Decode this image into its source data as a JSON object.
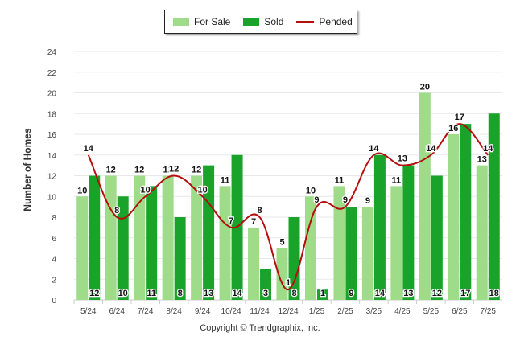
{
  "copyright": "Copyright © Trendgraphix, Inc.",
  "chart_data": {
    "type": "bar",
    "categories": [
      "5/24",
      "6/24",
      "7/24",
      "8/24",
      "9/24",
      "10/24",
      "11/24",
      "12/24",
      "1/25",
      "2/25",
      "3/25",
      "4/25",
      "5/25",
      "6/25",
      "7/25"
    ],
    "series": [
      {
        "name": "For Sale",
        "kind": "bar",
        "color": "#9fdc8a",
        "values": [
          10,
          12,
          12,
          12,
          12,
          11,
          7,
          5,
          10,
          11,
          9,
          11,
          20,
          16,
          13
        ]
      },
      {
        "name": "Sold",
        "kind": "bar",
        "color": "#1aa32a",
        "values": [
          12,
          10,
          11,
          8,
          13,
          14,
          3,
          8,
          1,
          9,
          14,
          13,
          12,
          17,
          18
        ]
      },
      {
        "name": "Pended",
        "kind": "line",
        "color": "#b50e0e",
        "values": [
          14,
          8,
          10,
          12,
          10,
          7,
          8,
          1,
          9,
          9,
          14,
          13,
          14,
          17,
          14
        ]
      }
    ],
    "xlabel": "",
    "ylabel": "Number of Homes",
    "ylim": [
      0,
      24
    ],
    "yticks": [
      0,
      2,
      4,
      6,
      8,
      10,
      12,
      14,
      16,
      18,
      20,
      22,
      24
    ],
    "grid": true,
    "legend_position": "top-center"
  }
}
